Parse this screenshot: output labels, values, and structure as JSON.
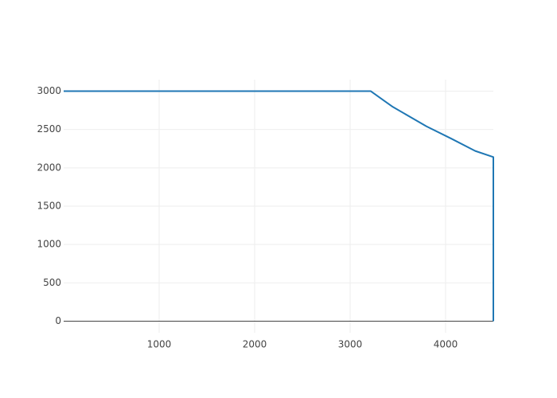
{
  "chart_data": {
    "type": "line",
    "title": "",
    "xlabel": "",
    "ylabel": "",
    "x_ticks": [
      1000,
      2000,
      3000,
      4000
    ],
    "y_ticks": [
      0,
      500,
      1000,
      1500,
      2000,
      2500,
      3000
    ],
    "x_tick_labels": [
      "1000",
      "2000",
      "3000",
      "4000"
    ],
    "y_tick_labels": [
      "0",
      "500",
      "1000",
      "1500",
      "2000",
      "2500",
      "3000"
    ],
    "xlim": [
      0,
      4500
    ],
    "ylim": [
      -150,
      3150
    ],
    "grid": true,
    "series": [
      {
        "color": "#1f77b4",
        "x": [
          0,
          3215,
          3440,
          3800,
          4060,
          4310,
          4500,
          4500
        ],
        "y": [
          3000,
          3000,
          2800,
          2540,
          2380,
          2220,
          2140,
          0
        ]
      }
    ]
  }
}
